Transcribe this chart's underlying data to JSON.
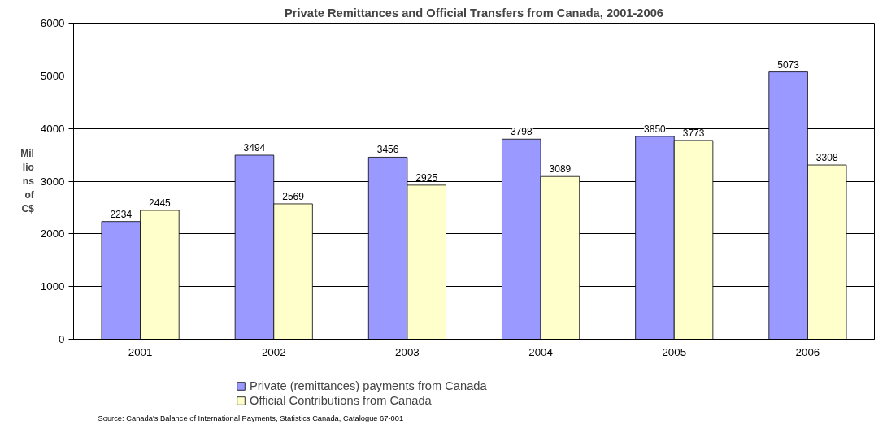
{
  "chart_data": {
    "type": "bar",
    "title": "Private Remittances and Official Transfers from Canada, 2001-2006",
    "ylabel": "Millions of C$",
    "categories": [
      "2001",
      "2002",
      "2003",
      "2004",
      "2005",
      "2006"
    ],
    "series": [
      {
        "name": "Private (remittances) payments from Canada",
        "color": "#9999ff",
        "values": [
          2234,
          3494,
          3456,
          3798,
          3850,
          5073
        ]
      },
      {
        "name": "Official Contributions from Canada",
        "color": "#ffffcc",
        "values": [
          2445,
          2569,
          2925,
          3089,
          3773,
          3308
        ]
      }
    ],
    "ylim": [
      0,
      6000
    ],
    "yticks": [
      0,
      1000,
      2000,
      3000,
      4000,
      5000,
      6000
    ],
    "grid": "y",
    "legend": "bottom",
    "data_labels": true,
    "annotations": [
      "Source: Canada's Balance of International Payments, Statistics Canada, Catalogue 67-001"
    ]
  }
}
